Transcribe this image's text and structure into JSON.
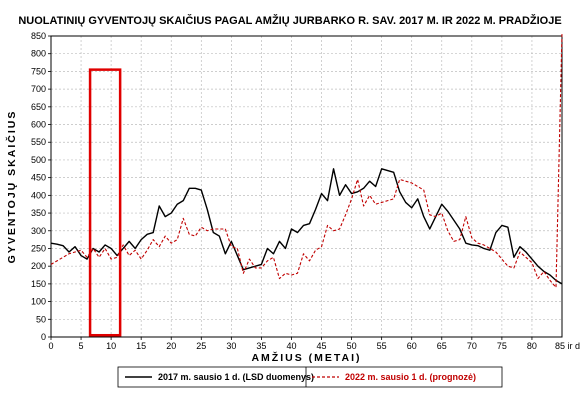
{
  "chart_data": {
    "type": "line",
    "title": "NUOLATINIŲ GYVENTOJŲ SKAIČIUS PAGAL AMŽIŲ JURBARKO R. SAV. 2017 M. IR 2022 M. PRADŽIOJE",
    "xlabel": "AMŽIUS (METAI)",
    "ylabel": "GYVENTOJŲ SKAIČIUS",
    "xlim": [
      0,
      85
    ],
    "ylim": [
      0,
      850
    ],
    "x_ticks": [
      0,
      5,
      10,
      15,
      20,
      25,
      30,
      35,
      40,
      45,
      50,
      55,
      60,
      65,
      70,
      75,
      80
    ],
    "x_tick_last_label": "85 ir dg.",
    "y_ticks": [
      0,
      50,
      100,
      150,
      200,
      250,
      300,
      350,
      400,
      450,
      500,
      550,
      600,
      650,
      700,
      750,
      800,
      850
    ],
    "grid": true,
    "legend_position": "bottom",
    "x": [
      0,
      1,
      2,
      3,
      4,
      5,
      6,
      7,
      8,
      9,
      10,
      11,
      12,
      13,
      14,
      15,
      16,
      17,
      18,
      19,
      20,
      21,
      22,
      23,
      24,
      25,
      26,
      27,
      28,
      29,
      30,
      31,
      32,
      33,
      34,
      35,
      36,
      37,
      38,
      39,
      40,
      41,
      42,
      43,
      44,
      45,
      46,
      47,
      48,
      49,
      50,
      51,
      52,
      53,
      54,
      55,
      56,
      57,
      58,
      59,
      60,
      61,
      62,
      63,
      64,
      65,
      66,
      67,
      68,
      69,
      70,
      71,
      72,
      73,
      74,
      75,
      76,
      77,
      78,
      79,
      80,
      81,
      82,
      83,
      84,
      85
    ],
    "series": [
      {
        "name": "2017 m. sausio 1 d. (LSD duomenys)",
        "color": "#000000",
        "dashed": false,
        "values": [
          265,
          262,
          258,
          240,
          255,
          230,
          220,
          250,
          240,
          260,
          250,
          230,
          250,
          270,
          250,
          275,
          290,
          295,
          370,
          340,
          350,
          375,
          385,
          420,
          420,
          415,
          360,
          295,
          285,
          235,
          270,
          230,
          190,
          195,
          200,
          205,
          250,
          235,
          270,
          250,
          305,
          295,
          315,
          320,
          360,
          405,
          385,
          475,
          400,
          430,
          405,
          410,
          420,
          440,
          425,
          475,
          470,
          465,
          410,
          380,
          365,
          390,
          340,
          305,
          340,
          375,
          355,
          330,
          305,
          265,
          260,
          258,
          250,
          245,
          295,
          315,
          310,
          225,
          255,
          240,
          220,
          200,
          185,
          175,
          160,
          150
        ]
      },
      {
        "name": "2022 m. sausio 1 d. (prognozė)",
        "color": "#c00000",
        "dashed": true,
        "values": [
          205,
          215,
          225,
          235,
          240,
          245,
          225,
          250,
          225,
          250,
          220,
          225,
          260,
          230,
          245,
          220,
          245,
          275,
          255,
          285,
          265,
          275,
          335,
          290,
          285,
          310,
          300,
          305,
          305,
          305,
          255,
          250,
          180,
          220,
          195,
          195,
          215,
          225,
          165,
          180,
          175,
          180,
          235,
          215,
          245,
          255,
          315,
          300,
          305,
          345,
          390,
          445,
          370,
          400,
          375,
          380,
          385,
          390,
          445,
          440,
          435,
          425,
          415,
          345,
          340,
          350,
          300,
          270,
          275,
          340,
          280,
          265,
          260,
          250,
          240,
          220,
          200,
          195,
          240,
          225,
          210,
          165,
          185,
          160,
          140,
          860
        ]
      }
    ]
  }
}
